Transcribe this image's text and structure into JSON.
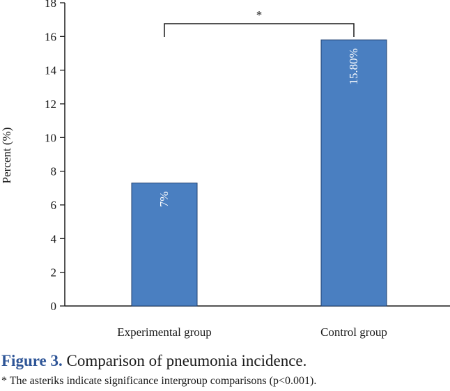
{
  "chart_data": {
    "type": "bar",
    "categories": [
      "Experimental group",
      "Control group"
    ],
    "values": [
      7.3,
      15.8
    ],
    "data_labels": [
      "7%",
      "15.80%"
    ],
    "ylabel": "Percent (%)",
    "xlabel": "",
    "ylim": [
      0,
      18
    ],
    "yticks": [
      0,
      2,
      4,
      6,
      8,
      10,
      12,
      14,
      16,
      18
    ],
    "grid": false,
    "legend": false,
    "bar_color": "#4a7fc1",
    "bar_edge_color": "#1f3f6e",
    "significance": {
      "marker": "*",
      "between": [
        "Experimental group",
        "Control group"
      ]
    }
  },
  "caption": {
    "label": "Figure 3.",
    "text": " Comparison of pneumonia incidence."
  },
  "footnote": "* The asteriks indicate significance intergroup comparisons (p<0.001)."
}
